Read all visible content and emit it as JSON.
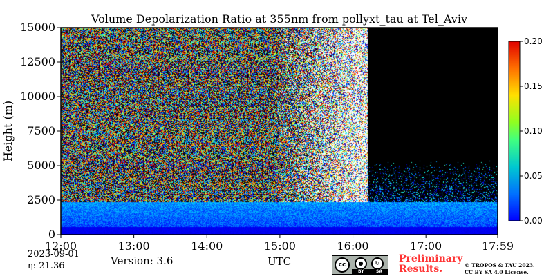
{
  "chart_data": {
    "type": "heatmap",
    "title": "Volume Depolarization Ratio at 355nm from pollyxt_tau at Tel_Aviv",
    "xlabel": "UTC",
    "ylabel": "Height (m)",
    "x_tick_labels": [
      "12:00",
      "13:00",
      "14:00",
      "15:00",
      "16:00",
      "17:00",
      "17:59"
    ],
    "x_tick_hours": [
      12.0,
      13.0,
      14.0,
      15.0,
      16.0,
      17.0,
      17.983
    ],
    "xlim_hours": [
      12.0,
      17.983
    ],
    "y_tick_labels": [
      "0",
      "2500",
      "5000",
      "7500",
      "10000",
      "12500",
      "15000"
    ],
    "y_ticks": [
      0,
      2500,
      5000,
      7500,
      10000,
      12500,
      15000
    ],
    "ylim": [
      0,
      15000
    ],
    "colorbar": {
      "colormap": "jet",
      "range": [
        0.0,
        0.2
      ],
      "tick_values": [
        0.0,
        0.05,
        0.1,
        0.15,
        0.2
      ],
      "tick_labels": [
        "0.00",
        "0.05",
        "0.10",
        "0.15",
        "0.20"
      ]
    },
    "background_color": "#000000",
    "features": {
      "boundary_layer_top_m": 2400,
      "near_surface_value": 0.02,
      "noisy_region_end_hour": 16.2,
      "signal_free_start_hour": 16.2
    }
  },
  "footer": {
    "date": "2023-09-01",
    "eta": "η:  21.36",
    "version": "Version: 3.6",
    "preliminary_line1": "Preliminary",
    "preliminary_line2": "Results.",
    "copyright_line1": "© TROPOS & TAU 2023.",
    "copyright_line2": "CC BY SA 4.0 License.",
    "license_badge": {
      "main": "cc",
      "by": "BY",
      "sa": "SA"
    }
  }
}
